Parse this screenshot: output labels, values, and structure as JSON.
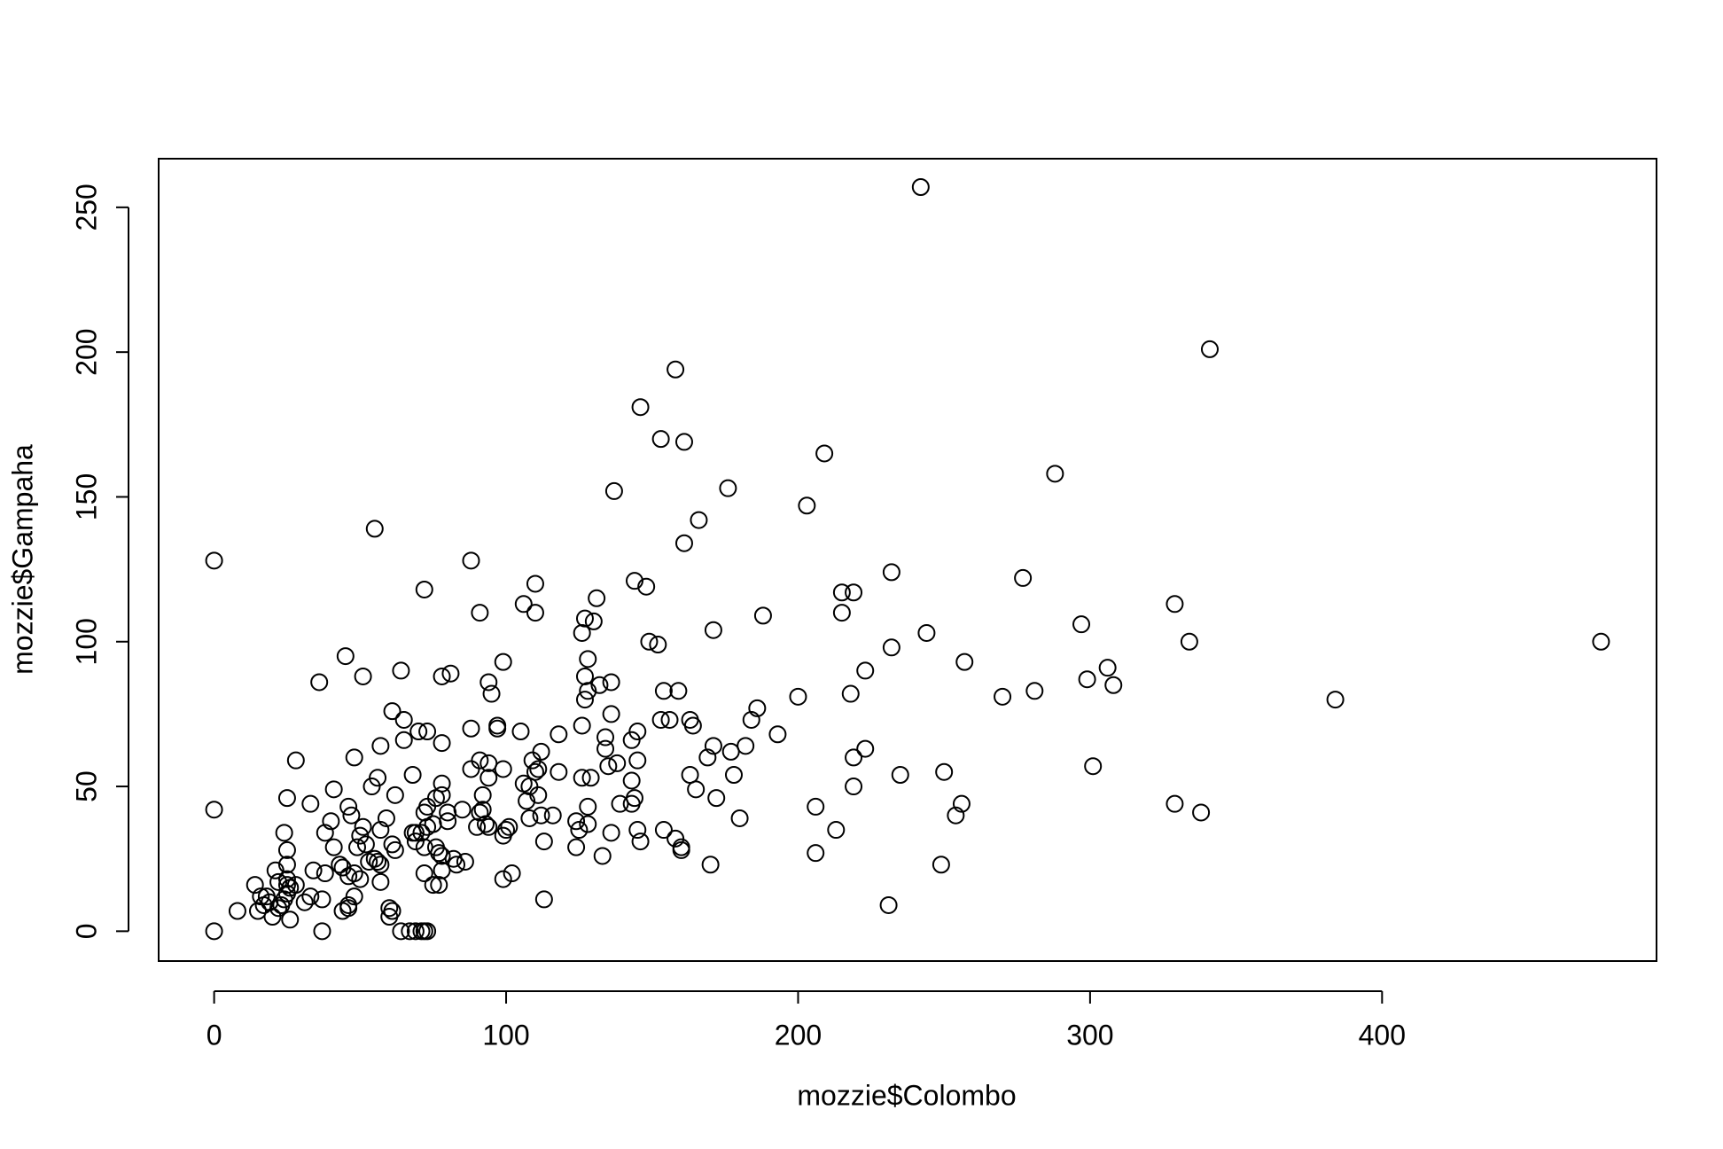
{
  "chart_data": {
    "type": "scatter",
    "xlabel": "mozzie$Colombo",
    "ylabel": "mozzie$Gampaha",
    "color": "#000000",
    "xlim": [
      -19,
      494
    ],
    "ylim": [
      -10.3,
      266.8
    ],
    "xticks": [
      0,
      100,
      200,
      300,
      400
    ],
    "yticks": [
      0,
      50,
      100,
      150,
      200,
      250
    ],
    "x": [
      242,
      341,
      475,
      384,
      288,
      0,
      0,
      0,
      146,
      158,
      153,
      161,
      209,
      137,
      176,
      166,
      161,
      203,
      55,
      88,
      72,
      110,
      144,
      148,
      131,
      106,
      110,
      91,
      127,
      130,
      126,
      171,
      188,
      215,
      219,
      215,
      232,
      277,
      329,
      297,
      244,
      232,
      334,
      299,
      306,
      308,
      257,
      223,
      218,
      270,
      281,
      200,
      186,
      184,
      193,
      152,
      149,
      128,
      99,
      94,
      95,
      127,
      132,
      136,
      128,
      127,
      154,
      159,
      153,
      156,
      163,
      164,
      136,
      145,
      134,
      143,
      171,
      177,
      169,
      182,
      178,
      163,
      165,
      172,
      180,
      206,
      213,
      219,
      219,
      223,
      235,
      250,
      256,
      254,
      249,
      231,
      206,
      170,
      301,
      329,
      338,
      45,
      51,
      64,
      78,
      81,
      36,
      61,
      65,
      70,
      73,
      88,
      97,
      97,
      105,
      118,
      112,
      109,
      111,
      118,
      110,
      106,
      108,
      111,
      107,
      108,
      112,
      116,
      113,
      125,
      124,
      124,
      126,
      129,
      126,
      134,
      135,
      138,
      143,
      144,
      143,
      139,
      136,
      145,
      146,
      145,
      154,
      158,
      160,
      160,
      128,
      128,
      133,
      113,
      102,
      99,
      100,
      101,
      99,
      92,
      91,
      90,
      92,
      93,
      94,
      94,
      94,
      88,
      91,
      99,
      85,
      86,
      80,
      80,
      82,
      83,
      78,
      78,
      76,
      78,
      75,
      72,
      73,
      73,
      72,
      72,
      76,
      77,
      78,
      75,
      77,
      78,
      68,
      69,
      69,
      71,
      68,
      65,
      62,
      61,
      62,
      60,
      60,
      61,
      57,
      56,
      57,
      59,
      55,
      56,
      57,
      57,
      54,
      52,
      53,
      50,
      51,
      49,
      50,
      48,
      48,
      46,
      46,
      46,
      44,
      43,
      44,
      47,
      46,
      48,
      41,
      40,
      41,
      38,
      38,
      37,
      37,
      33,
      34,
      33,
      31,
      28,
      28,
      26,
      25,
      25,
      26,
      25,
      25,
      25,
      24,
      25,
      24,
      23,
      22,
      21,
      22,
      19,
      20,
      18,
      17,
      16,
      14,
      15,
      8,
      64,
      67,
      69,
      71,
      72,
      73
    ],
    "values": [
      257,
      201,
      100,
      80,
      158,
      128,
      42,
      0,
      181,
      194,
      170,
      169,
      165,
      152,
      153,
      142,
      134,
      147,
      139,
      128,
      118,
      120,
      121,
      119,
      115,
      113,
      110,
      110,
      108,
      107,
      103,
      104,
      109,
      117,
      117,
      110,
      124,
      122,
      113,
      106,
      103,
      98,
      100,
      87,
      91,
      85,
      93,
      90,
      82,
      81,
      83,
      81,
      77,
      73,
      68,
      99,
      100,
      94,
      93,
      86,
      82,
      88,
      85,
      86,
      83,
      80,
      83,
      83,
      73,
      73,
      73,
      71,
      75,
      69,
      67,
      66,
      64,
      62,
      60,
      64,
      54,
      54,
      49,
      46,
      39,
      43,
      35,
      50,
      60,
      63,
      54,
      55,
      44,
      40,
      23,
      9,
      27,
      23,
      57,
      44,
      41,
      95,
      88,
      90,
      88,
      89,
      86,
      76,
      73,
      69,
      69,
      70,
      71,
      70,
      69,
      68,
      62,
      59,
      56,
      55,
      55,
      51,
      50,
      47,
      45,
      39,
      40,
      40,
      31,
      35,
      29,
      38,
      53,
      53,
      71,
      63,
      57,
      58,
      52,
      46,
      44,
      44,
      34,
      35,
      31,
      59,
      35,
      32,
      29,
      28,
      43,
      37,
      26,
      11,
      20,
      18,
      35,
      36,
      33,
      47,
      41,
      36,
      42,
      37,
      36,
      53,
      58,
      56,
      59,
      56,
      42,
      24,
      38,
      41,
      25,
      23,
      51,
      47,
      46,
      65,
      37,
      41,
      43,
      36,
      29,
      20,
      29,
      27,
      26,
      16,
      16,
      21,
      34,
      34,
      31,
      34,
      54,
      66,
      47,
      30,
      28,
      8,
      5,
      7,
      64,
      53,
      35,
      39,
      25,
      24,
      23,
      17,
      50,
      30,
      24,
      33,
      36,
      29,
      18,
      20,
      12,
      19,
      9,
      8,
      22,
      23,
      7,
      40,
      43,
      60,
      49,
      38,
      29,
      34,
      20,
      11,
      0,
      44,
      21,
      12,
      10,
      59,
      16,
      4,
      13,
      16,
      15,
      18,
      23,
      28,
      34,
      46,
      11,
      9,
      8,
      21,
      17,
      10,
      5,
      12,
      9,
      12,
      16,
      7,
      7,
      0,
      0,
      0,
      0,
      0,
      0
    ]
  }
}
